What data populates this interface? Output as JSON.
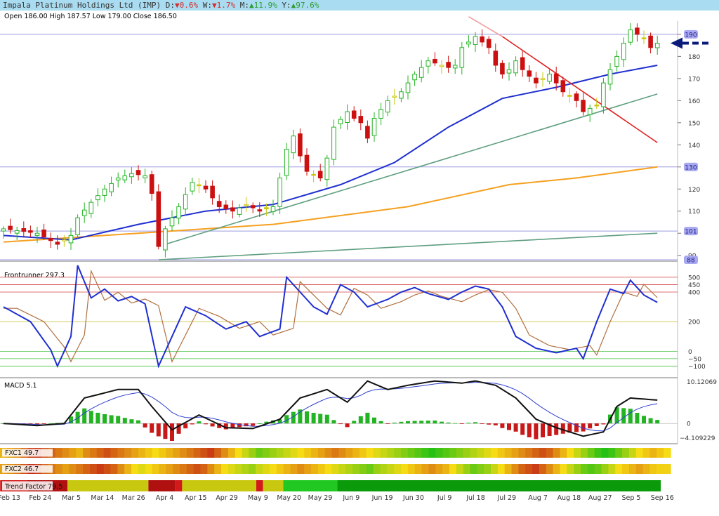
{
  "header": {
    "title": "Impala Platinum Holdings Ltd (IMP)",
    "d_label": "D:",
    "d_value": "0.6%",
    "w_label": "W:",
    "w_value": "1.7%",
    "m_label": "M:",
    "m_value": "11.9%",
    "y_label": "Y:",
    "y_value": "97.6%",
    "down_arrow": "▼",
    "up_arrow": "▲"
  },
  "ohlc": "Open 186.00  High 187.57  Low 179.00  Close 186.50",
  "colors": {
    "bull": "#22b422",
    "bear": "#cc1010",
    "neutral": "#c8c810",
    "sma_fast": "#1f2fd0",
    "sma_slow": "#f5a020",
    "trend": "#5f9f80",
    "resistance": "#e02020",
    "hline": "#9a9ae0",
    "arrow": "#0a1a7a"
  },
  "chart_data": [
    {
      "type": "candlestick",
      "title": "Impala Platinum Holdings Ltd (IMP)",
      "ylim": [
        88,
        196
      ],
      "y_ticks": [
        90,
        100,
        110,
        120,
        130,
        140,
        150,
        160,
        170,
        180,
        190
      ],
      "y_tick_labels": [
        "90",
        "",
        "110",
        "120",
        "",
        "140",
        "150",
        "160",
        "170",
        "180",
        ""
      ],
      "highlighted_levels": [
        {
          "label": "190",
          "value": 190
        },
        {
          "label": "130",
          "value": 130
        },
        {
          "label": "101",
          "value": 101
        },
        {
          "label": "88",
          "value": 88
        }
      ],
      "x_labels": [
        "Feb 13",
        "Feb 24",
        "Mar 5",
        "Mar 14",
        "Mar 26",
        "Apr 4",
        "Apr 15",
        "Apr 29",
        "May 9",
        "May 20",
        "May 29",
        "Jun 9",
        "Jun 19",
        "Jun 30",
        "Jul 9",
        "Jul 18",
        "Jul 29",
        "Aug 7",
        "Aug 18",
        "Aug 27",
        "Sep 5",
        "Sep 16"
      ],
      "keypoints": [
        [
          0,
          102
        ],
        [
          5,
          100
        ],
        [
          8,
          95
        ],
        [
          10,
          99
        ],
        [
          11,
          107
        ],
        [
          13,
          114
        ],
        [
          15,
          120
        ],
        [
          17,
          125
        ],
        [
          19,
          127
        ],
        [
          21,
          126
        ],
        [
          22,
          118
        ],
        [
          23,
          94
        ],
        [
          24,
          102
        ],
        [
          26,
          112
        ],
        [
          28,
          123
        ],
        [
          30,
          120
        ],
        [
          32,
          112
        ],
        [
          34,
          110
        ],
        [
          36,
          113
        ],
        [
          38,
          110
        ],
        [
          40,
          112
        ],
        [
          42,
          138
        ],
        [
          43,
          144
        ],
        [
          44,
          135
        ],
        [
          45,
          128
        ],
        [
          47,
          125
        ],
        [
          48,
          134
        ],
        [
          49,
          148
        ],
        [
          51,
          155
        ],
        [
          52,
          152
        ],
        [
          53,
          150
        ],
        [
          54,
          143
        ],
        [
          55,
          152
        ],
        [
          57,
          160
        ],
        [
          58,
          162
        ],
        [
          59,
          164
        ],
        [
          61,
          172
        ],
        [
          63,
          178
        ],
        [
          65,
          176
        ],
        [
          66,
          175
        ],
        [
          67,
          176
        ],
        [
          68,
          184
        ],
        [
          70,
          189
        ],
        [
          72,
          184
        ],
        [
          73,
          176
        ],
        [
          74,
          172
        ],
        [
          75,
          174
        ],
        [
          76,
          178
        ],
        [
          77,
          174
        ],
        [
          79,
          168
        ],
        [
          81,
          172
        ],
        [
          83,
          164
        ],
        [
          85,
          160
        ],
        [
          86,
          155
        ],
        [
          88,
          158
        ],
        [
          89,
          168
        ],
        [
          91,
          180
        ],
        [
          92,
          186
        ],
        [
          93,
          192
        ],
        [
          95,
          188
        ],
        [
          96,
          184
        ],
        [
          97,
          186
        ]
      ],
      "sma_fast": [
        [
          0,
          99
        ],
        [
          10,
          97
        ],
        [
          20,
          104
        ],
        [
          30,
          110
        ],
        [
          40,
          113
        ],
        [
          50,
          122
        ],
        [
          58,
          132
        ],
        [
          66,
          148
        ],
        [
          74,
          161
        ],
        [
          82,
          166
        ],
        [
          90,
          172
        ],
        [
          97,
          176
        ]
      ],
      "sma_slow": [
        [
          0,
          96
        ],
        [
          20,
          100
        ],
        [
          40,
          104
        ],
        [
          60,
          112
        ],
        [
          75,
          122
        ],
        [
          85,
          125
        ],
        [
          97,
          130
        ]
      ],
      "trendlines": [
        {
          "color_key": "trend",
          "points": [
            [
              24,
              95
            ],
            [
              97,
              163
            ]
          ]
        },
        {
          "color_key": "trend",
          "points": [
            [
              23,
              88
            ],
            [
              97,
              100
            ]
          ]
        },
        {
          "color_key": "resistance",
          "points": [
            [
              74,
              189
            ],
            [
              97,
              141
            ]
          ]
        },
        {
          "color_key": "resistance_faint",
          "points": [
            [
              69,
              198
            ],
            [
              74,
              189
            ]
          ]
        }
      ]
    },
    {
      "type": "line",
      "title": "Frontrunner 297.3",
      "ylim": [
        -150,
        580
      ],
      "y_ticks": [
        500,
        450,
        400,
        200,
        0,
        -50,
        -100
      ],
      "y_tick_labels": [
        "500",
        "450",
        "400",
        "200",
        "0",
        "−50",
        "−100"
      ],
      "keypoints": [
        [
          0,
          300
        ],
        [
          4,
          200
        ],
        [
          7,
          10
        ],
        [
          8,
          -100
        ],
        [
          10,
          100
        ],
        [
          11,
          580
        ],
        [
          13,
          360
        ],
        [
          15,
          420
        ],
        [
          17,
          340
        ],
        [
          19,
          370
        ],
        [
          21,
          320
        ],
        [
          23,
          -100
        ],
        [
          25,
          100
        ],
        [
          27,
          300
        ],
        [
          30,
          240
        ],
        [
          33,
          150
        ],
        [
          36,
          200
        ],
        [
          38,
          100
        ],
        [
          41,
          150
        ],
        [
          42,
          500
        ],
        [
          44,
          400
        ],
        [
          46,
          300
        ],
        [
          48,
          250
        ],
        [
          50,
          450
        ],
        [
          52,
          400
        ],
        [
          54,
          300
        ],
        [
          57,
          350
        ],
        [
          59,
          400
        ],
        [
          61,
          430
        ],
        [
          63,
          390
        ],
        [
          66,
          350
        ],
        [
          68,
          400
        ],
        [
          70,
          440
        ],
        [
          72,
          420
        ],
        [
          74,
          300
        ],
        [
          76,
          100
        ],
        [
          79,
          20
        ],
        [
          82,
          -10
        ],
        [
          85,
          20
        ],
        [
          86,
          -50
        ],
        [
          88,
          200
        ],
        [
          90,
          420
        ],
        [
          92,
          390
        ],
        [
          93,
          480
        ],
        [
          95,
          380
        ],
        [
          97,
          330
        ]
      ],
      "signal_lag": 2
    },
    {
      "type": "bar+line",
      "title": "MACD 5.1",
      "ylim": [
        -4.109229,
        10.12069
      ],
      "y_tick_labels": [
        "10.12069",
        "0",
        "−4.109229"
      ],
      "macd_points": [
        [
          0,
          0
        ],
        [
          5,
          -0.5
        ],
        [
          9,
          0
        ],
        [
          12,
          6
        ],
        [
          17,
          8
        ],
        [
          20,
          8
        ],
        [
          22,
          4
        ],
        [
          25,
          -1.5
        ],
        [
          29,
          2
        ],
        [
          33,
          -1
        ],
        [
          37,
          -1.2
        ],
        [
          41,
          1
        ],
        [
          44,
          6
        ],
        [
          48,
          8
        ],
        [
          51,
          5
        ],
        [
          54,
          10
        ],
        [
          57,
          8
        ],
        [
          60,
          9
        ],
        [
          64,
          10
        ],
        [
          68,
          9.5
        ],
        [
          70,
          10
        ],
        [
          73,
          9
        ],
        [
          76,
          6
        ],
        [
          79,
          1
        ],
        [
          82,
          -1
        ],
        [
          86,
          -3
        ],
        [
          89,
          -2
        ],
        [
          91,
          4
        ],
        [
          93,
          6
        ],
        [
          97,
          5.5
        ]
      ]
    },
    {
      "type": "heatmap",
      "title": "FXC1 49.7",
      "value_scale": [
        0,
        100
      ],
      "values": [
        40,
        35,
        30,
        20,
        10,
        8,
        15,
        20,
        25,
        30,
        35,
        40,
        30,
        25,
        20,
        15,
        20,
        25,
        30,
        35,
        40,
        45,
        50,
        45,
        40,
        35,
        30,
        25,
        20,
        15,
        10,
        20,
        30,
        40,
        50,
        60,
        70,
        80,
        75,
        70,
        65,
        60,
        55,
        50,
        45,
        40,
        35,
        30,
        25,
        30,
        35,
        40,
        45,
        50,
        55,
        60,
        65,
        70,
        75,
        80,
        85,
        90,
        95,
        90,
        85,
        80,
        75,
        70,
        65,
        60,
        55,
        50,
        45,
        40,
        35,
        30,
        25,
        20,
        15,
        20,
        30,
        40,
        50,
        60,
        70,
        80,
        90,
        95,
        90,
        80,
        70,
        60,
        50,
        45,
        40,
        45,
        50
      ]
    },
    {
      "type": "heatmap",
      "title": "FXC2 46.7",
      "value_scale": [
        0,
        100
      ],
      "values": [
        35,
        30,
        25,
        15,
        5,
        10,
        20,
        25,
        30,
        35,
        30,
        25,
        20,
        15,
        10,
        15,
        20,
        30,
        40,
        50,
        55,
        50,
        45,
        40,
        35,
        30,
        25,
        20,
        15,
        20,
        30,
        40,
        50,
        55,
        60,
        65,
        70,
        60,
        55,
        50,
        45,
        40,
        35,
        30,
        35,
        40,
        45,
        50,
        55,
        60,
        65,
        70,
        75,
        80,
        70,
        65,
        60,
        55,
        50,
        45,
        40,
        35,
        30,
        35,
        40,
        50,
        60,
        70,
        80,
        75,
        70,
        60,
        50,
        40,
        30,
        20,
        15,
        10,
        20,
        30,
        40,
        50,
        60,
        70,
        80,
        85,
        80,
        70,
        60,
        50,
        45,
        40,
        35,
        40,
        45,
        47,
        47
      ]
    },
    {
      "type": "heatmap",
      "title": "Trend Factor 79.5",
      "segments": [
        {
          "from": 0,
          "to": 4,
          "color": "#d21a1a"
        },
        {
          "from": 4,
          "to": 10,
          "color": "#b01010"
        },
        {
          "from": 10,
          "to": 22,
          "color": "#c8c810"
        },
        {
          "from": 22,
          "to": 26,
          "color": "#b01010"
        },
        {
          "from": 26,
          "to": 27,
          "color": "#d21a1a"
        },
        {
          "from": 27,
          "to": 38,
          "color": "#c8c810"
        },
        {
          "from": 38,
          "to": 39,
          "color": "#d21a1a"
        },
        {
          "from": 39,
          "to": 42,
          "color": "#c8c810"
        },
        {
          "from": 42,
          "to": 50,
          "color": "#22c822"
        },
        {
          "from": 50,
          "to": 98,
          "color": "#0a9a0a"
        }
      ]
    }
  ]
}
